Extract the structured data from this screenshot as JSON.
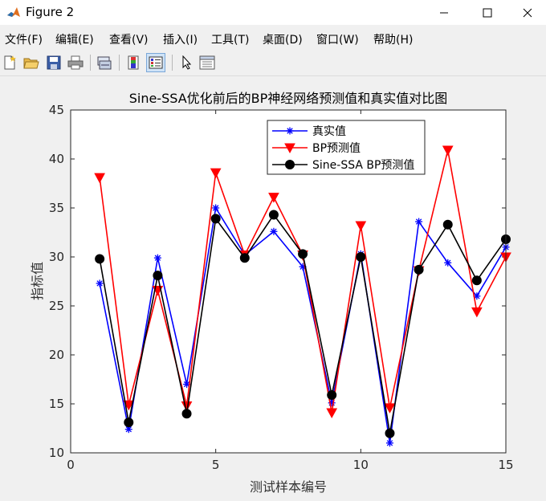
{
  "window": {
    "title": "Figure 2"
  },
  "menu": [
    {
      "label": "文件(F)"
    },
    {
      "label": "编辑(E)"
    },
    {
      "label": "查看(V)"
    },
    {
      "label": "插入(I)"
    },
    {
      "label": "工具(T)"
    },
    {
      "label": "桌面(D)"
    },
    {
      "label": "窗口(W)"
    },
    {
      "label": "帮助(H)"
    }
  ],
  "toolbar": [
    {
      "icon": "new-file-icon"
    },
    {
      "icon": "open-folder-icon"
    },
    {
      "icon": "save-icon"
    },
    {
      "icon": "print-icon"
    },
    {
      "icon": "link-axes-icon"
    },
    {
      "icon": "colorbar-icon"
    },
    {
      "icon": "legend-icon"
    },
    {
      "icon": "pointer-icon"
    },
    {
      "icon": "property-inspector-icon"
    }
  ],
  "colors": {
    "series1": "#0000ff",
    "series2": "#ff0000",
    "series3": "#000000"
  },
  "chart_data": {
    "type": "line",
    "title": "Sine-SSA优化前后的BP神经网络预测值和真实值对比图",
    "xlabel": "测试样本编号",
    "ylabel": "指标值",
    "xlim": [
      0,
      15
    ],
    "ylim": [
      10,
      45
    ],
    "xticks": [
      0,
      5,
      10,
      15
    ],
    "yticks": [
      10,
      15,
      20,
      25,
      30,
      35,
      40,
      45
    ],
    "grid": false,
    "legend_position": "top-right",
    "x": [
      1,
      2,
      3,
      4,
      5,
      6,
      7,
      8,
      9,
      10,
      11,
      12,
      13,
      14,
      15
    ],
    "series": [
      {
        "name": "真实值",
        "marker": "asterisk",
        "values": [
          27.3,
          12.4,
          29.9,
          17.0,
          35.0,
          30.2,
          32.6,
          29.0,
          15.1,
          30.3,
          11.0,
          33.6,
          29.4,
          26.0,
          31.0
        ]
      },
      {
        "name": "BP预测值",
        "marker": "triangle-down",
        "values": [
          38.1,
          14.9,
          26.6,
          14.8,
          38.6,
          30.2,
          36.1,
          30.2,
          14.1,
          33.2,
          14.6,
          28.6,
          40.9,
          24.4,
          30.0
        ]
      },
      {
        "name": "Sine-SSA BP预测值",
        "marker": "circle",
        "values": [
          29.8,
          13.1,
          28.1,
          14.0,
          33.9,
          29.9,
          34.3,
          30.3,
          15.9,
          30.0,
          12.0,
          28.7,
          33.3,
          27.6,
          31.8
        ]
      }
    ]
  }
}
